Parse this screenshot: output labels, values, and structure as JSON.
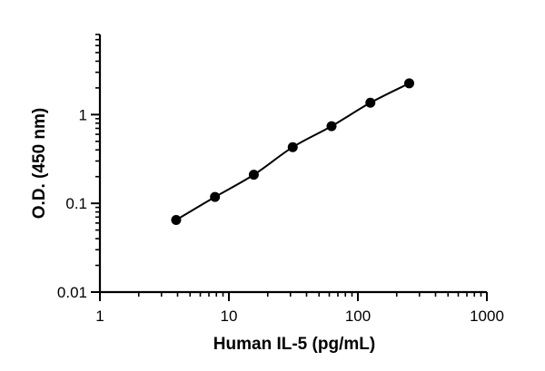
{
  "chart_data": {
    "type": "scatter",
    "xlabel": "Human IL-5 (pg/mL)",
    "ylabel": "O.D. (450 nm)",
    "xscale": "log",
    "yscale": "log",
    "xlim": [
      1,
      1000
    ],
    "ylim": [
      0.01,
      8
    ],
    "x_ticks": [
      {
        "value": 1,
        "label": "1"
      },
      {
        "value": 10,
        "label": "10"
      },
      {
        "value": 100,
        "label": "100"
      },
      {
        "value": 1000,
        "label": "1000"
      }
    ],
    "y_ticks": [
      {
        "value": 0.01,
        "label": "0.01"
      },
      {
        "value": 0.1,
        "label": "0.1"
      },
      {
        "value": 1,
        "label": "1"
      }
    ],
    "grid": false,
    "fit_curve": true,
    "series": [
      {
        "x": [
          3.9,
          7.8,
          15.6,
          31.25,
          62.5,
          125,
          250
        ],
        "y": [
          0.065,
          0.118,
          0.21,
          0.43,
          0.74,
          1.36,
          2.25
        ]
      }
    ]
  }
}
